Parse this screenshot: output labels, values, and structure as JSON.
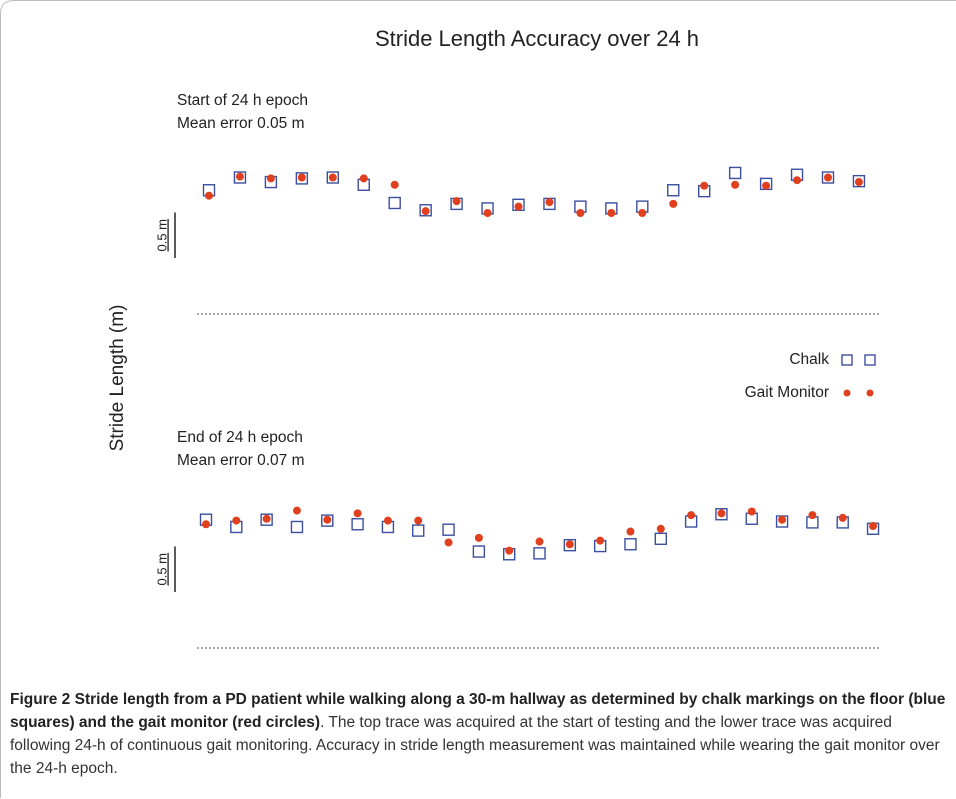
{
  "chart_data": [
    {
      "type": "scatter",
      "title": "Stride Length Accuracy over 24 h",
      "y_label": "Stride Length (m)",
      "annotation": [
        "Start of 24 h epoch",
        "Mean error 0.05 m"
      ],
      "scale_bar": {
        "value": 0.5,
        "label": "0.5 m"
      },
      "ylim": [
        0,
        2
      ],
      "series": [
        {
          "name": "Chalk",
          "color": "#3a4fa0",
          "marker": "square",
          "values": [
            1.36,
            1.5,
            1.45,
            1.49,
            1.5,
            1.42,
            1.22,
            1.14,
            1.21,
            1.16,
            1.2,
            1.21,
            1.18,
            1.16,
            1.18,
            1.36,
            1.35,
            1.55,
            1.43,
            1.53,
            1.5,
            1.46
          ]
        },
        {
          "name": "Gait Monitor",
          "color": "#e0401e",
          "marker": "circle",
          "values": [
            1.3,
            1.51,
            1.49,
            1.5,
            1.5,
            1.49,
            1.42,
            1.13,
            1.24,
            1.11,
            1.18,
            1.23,
            1.11,
            1.11,
            1.11,
            1.21,
            1.41,
            1.42,
            1.41,
            1.47,
            1.5,
            1.45
          ]
        }
      ]
    },
    {
      "type": "scatter",
      "annotation": [
        "End of 24 h epoch",
        "Mean error 0.07 m"
      ],
      "scale_bar": {
        "value": 0.5,
        "label": "0.5 m"
      },
      "ylim": [
        0,
        2
      ],
      "series": [
        {
          "name": "Chalk",
          "color": "#3a4fa0",
          "marker": "square",
          "values": [
            1.41,
            1.33,
            1.41,
            1.33,
            1.4,
            1.36,
            1.33,
            1.29,
            1.3,
            1.06,
            1.03,
            1.04,
            1.13,
            1.12,
            1.14,
            1.2,
            1.39,
            1.47,
            1.42,
            1.39,
            1.38,
            1.38,
            1.31
          ]
        },
        {
          "name": "Gait Monitor",
          "color": "#e0401e",
          "marker": "circle",
          "values": [
            1.36,
            1.4,
            1.42,
            1.51,
            1.41,
            1.48,
            1.4,
            1.4,
            1.16,
            1.21,
            1.07,
            1.17,
            1.14,
            1.18,
            1.28,
            1.31,
            1.46,
            1.48,
            1.5,
            1.41,
            1.46,
            1.43,
            1.34
          ]
        }
      ]
    }
  ],
  "caption": {
    "label": "Figure 2",
    "bold": "Stride length from a PD patient while walking along a 30-m hallway as determined by chalk markings on the floor (blue squares) and the gait monitor (red circles)",
    "text": ". The top trace was acquired at the start of testing and the lower trace was acquired following 24-h of continuous gait monitoring. Accuracy in stride length measurement was maintained while wearing the gait monitor over the 24-h epoch."
  }
}
